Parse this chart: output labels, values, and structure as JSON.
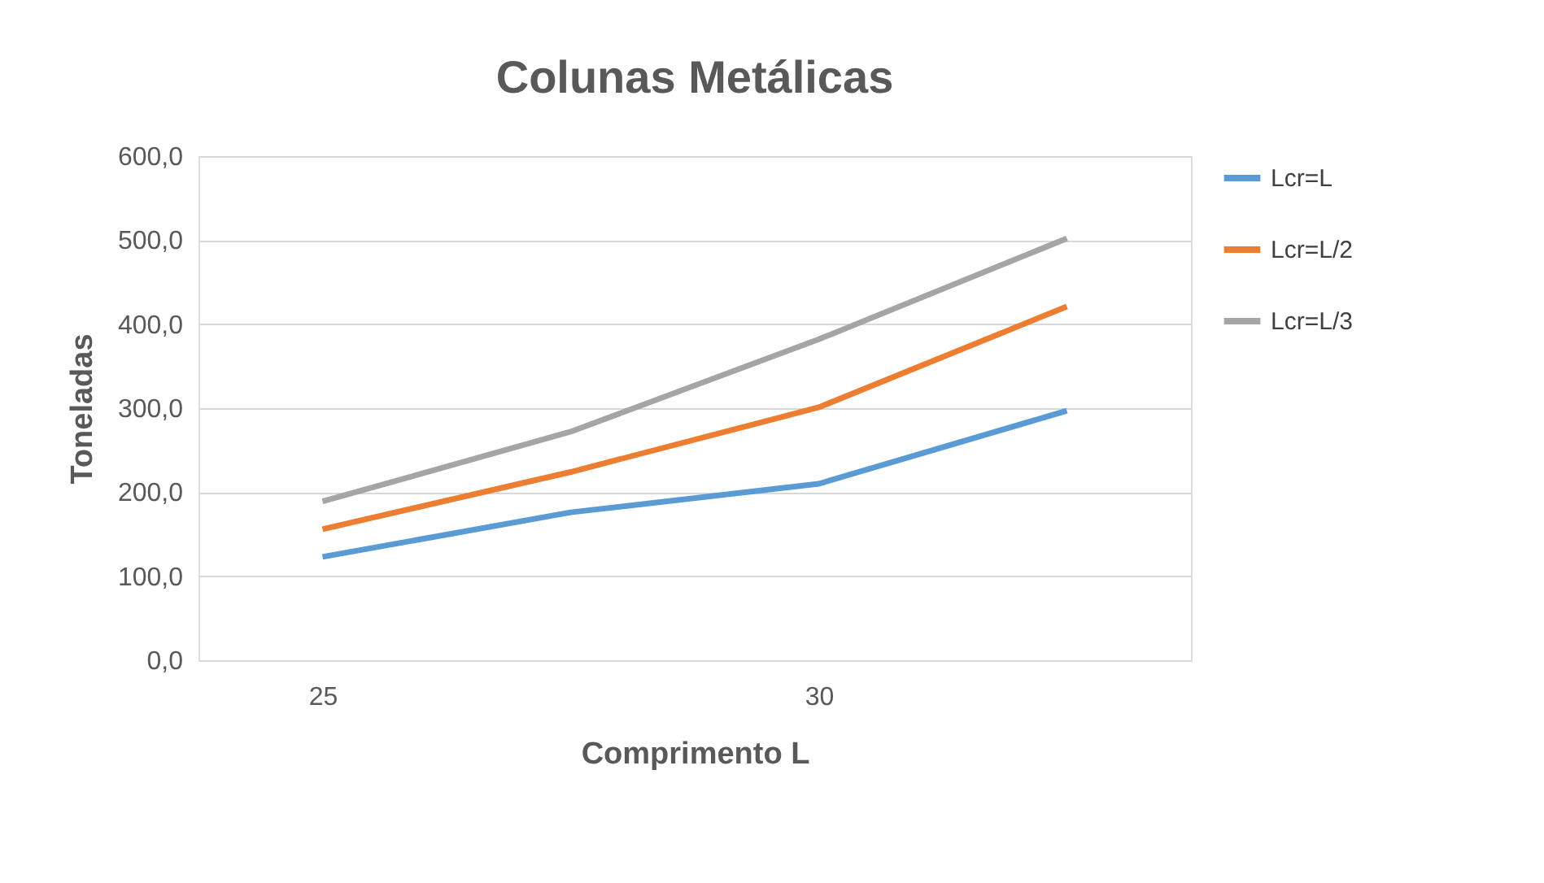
{
  "chart_data": {
    "type": "line",
    "title": "Colunas Metálicas",
    "xlabel": "Comprimento L",
    "ylabel": "Toneladas",
    "categories": [
      "25",
      null,
      "30",
      null
    ],
    "series": [
      {
        "name": "Lcr=L",
        "color": "#5b9bd5",
        "values": [
          123,
          176,
          210,
          297
        ]
      },
      {
        "name": "Lcr=L/2",
        "color": "#ed7d31",
        "values": [
          156,
          224,
          301,
          421
        ]
      },
      {
        "name": "Lcr=L/3",
        "color": "#a5a5a5",
        "values": [
          189,
          272,
          382,
          502
        ]
      }
    ],
    "ylim": [
      0,
      600
    ],
    "yticks": [
      {
        "value": 0,
        "label": "0,0"
      },
      {
        "value": 100,
        "label": "100,0"
      },
      {
        "value": 200,
        "label": "200,0"
      },
      {
        "value": 300,
        "label": "300,0"
      },
      {
        "value": 400,
        "label": "400,0"
      },
      {
        "value": 500,
        "label": "500,0"
      },
      {
        "value": 600,
        "label": "600,0"
      }
    ],
    "grid": "y",
    "legend": "right",
    "marker": "none",
    "line_style": "solid"
  }
}
